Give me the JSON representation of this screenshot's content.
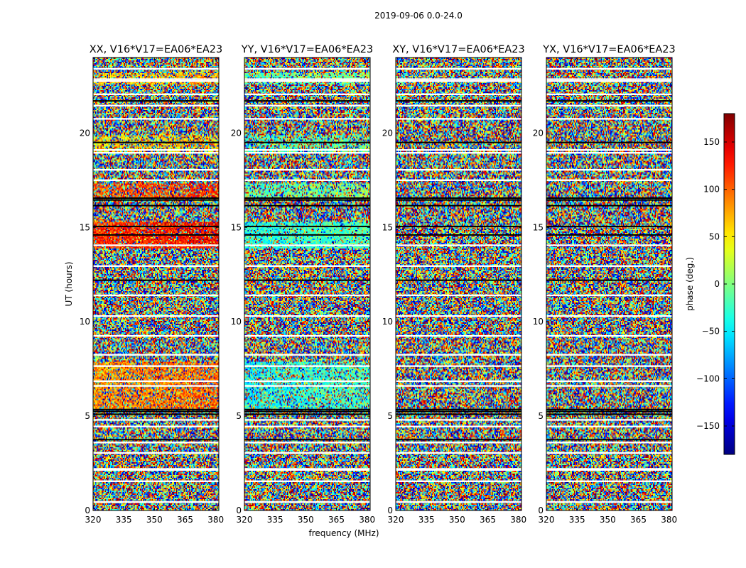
{
  "figure": {
    "suptitle": "2019-09-06 0.0-24.0",
    "xlabel": "frequency (MHz)",
    "ylabel": "UT (hours)"
  },
  "chart_data": {
    "type": "heatmap",
    "description_values": "phase of visibility vs frequency and UT for each correlation product",
    "x_ticks": [
      "320",
      "335",
      "350",
      "365",
      "380"
    ],
    "x_tick_values": [
      320,
      335,
      350,
      365,
      380
    ],
    "xlim": [
      320,
      381.5
    ],
    "y_ticks": [
      "0",
      "5",
      "10",
      "15",
      "20"
    ],
    "y_tick_values": [
      0,
      5,
      10,
      15,
      20
    ],
    "ylim": [
      0,
      24
    ],
    "panels": [
      {
        "title": "XX, V16*V17=EA06*EA23",
        "ylabels_shown": true
      },
      {
        "title": "YY, V16*V17=EA06*EA23",
        "ylabels_shown": true
      },
      {
        "title": "XY, V16*V17=EA06*EA23",
        "ylabels_shown": true
      },
      {
        "title": "YX, V16*V17=EA06*EA23",
        "ylabels_shown": true
      }
    ],
    "colorbar": {
      "label": "phase (deg.)",
      "range": [
        -180,
        180
      ],
      "ticks": [
        "150",
        "100",
        "50",
        "0",
        "−50",
        "−100",
        "−150"
      ],
      "tick_values": [
        150,
        100,
        50,
        0,
        -50,
        -100,
        -150
      ],
      "colormap": "jet"
    },
    "flagged_bands_hours": [
      0.45,
      1.55,
      2.15,
      2.2,
      3.05,
      3.6,
      4.45,
      4.8,
      6.6,
      6.85,
      7.65,
      8.25,
      9.25,
      10.3,
      11.4,
      12.95,
      14.05,
      17.5,
      18.05,
      18.95,
      19.1,
      20.75,
      21.45,
      22.05,
      22.75,
      22.85,
      23.4
    ],
    "flag_color": "#ffffff",
    "dense_black_bands_hours": [
      3.75,
      5.1,
      5.25,
      5.35,
      12.2,
      14.6,
      15.05,
      16.15,
      16.45,
      16.55,
      19.5,
      21.7
    ]
  }
}
